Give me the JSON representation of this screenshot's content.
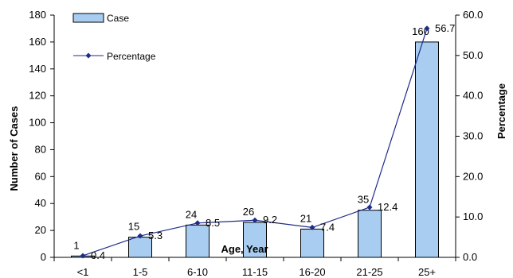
{
  "chart_data": {
    "type": "bar",
    "categories": [
      "<1",
      "1-5",
      "6-10",
      "11-15",
      "16-20",
      "21-25",
      "25+"
    ],
    "series": [
      {
        "name": "Case",
        "type": "bar",
        "axis": "left",
        "color": "#a9cdf0",
        "values": [
          1,
          15,
          24,
          26,
          21,
          35,
          160
        ],
        "labels": [
          "1",
          "15",
          "24",
          "26",
          "21",
          "35",
          "160"
        ]
      },
      {
        "name": "Percentage",
        "type": "line",
        "axis": "right",
        "color": "#1f2d8a",
        "values": [
          0.4,
          5.3,
          8.5,
          9.2,
          7.4,
          12.4,
          56.7
        ],
        "labels": [
          "0.4",
          "5.3",
          "8.5",
          "9.2",
          "7.4",
          "12.4",
          "56.7"
        ]
      }
    ],
    "xlabel": "Age, Year",
    "ylabel": "Number of Cases",
    "y2label": "Percentage",
    "ylim": [
      0,
      180
    ],
    "y2lim": [
      0,
      60
    ],
    "yticks": [
      "0",
      "20",
      "40",
      "60",
      "80",
      "100",
      "120",
      "140",
      "160",
      "180"
    ],
    "y2ticks": [
      "0.0",
      "10.0",
      "20.0",
      "30.0",
      "40.0",
      "50.0",
      "60.0"
    ],
    "legend_position": "top-left",
    "grid": false
  }
}
